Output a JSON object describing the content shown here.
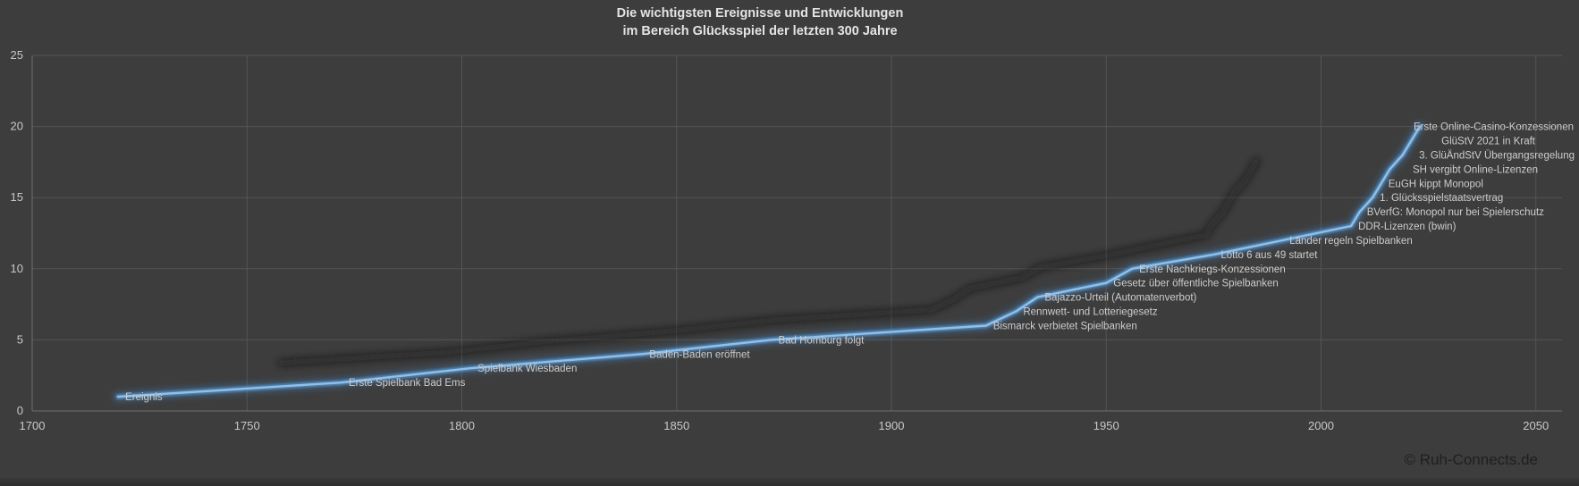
{
  "title": {
    "line1": "Die wichtigsten Ereignisse und Entwicklungen",
    "line2": "im Bereich Glücksspiel der letzten 300 Jahre"
  },
  "watermark": "© Ruh-Connects.de",
  "colors": {
    "background": "#3d3d3d",
    "gridline": "#555555",
    "axis": "#6e6e6e",
    "tick_text": "#c9c9c9",
    "title_text": "#e4e4e4",
    "label_text": "#cfcdcd",
    "line": "#5b9bd5",
    "line_core": "#8fc0ea",
    "line_glow": "#4285c4",
    "shadow": "#191919",
    "watermark_text": "#1f1f1f"
  },
  "chart_data": {
    "type": "line",
    "title": "Die wichtigsten Ereignisse und Entwicklungen im Bereich Glücksspiel der letzten 300 Jahre",
    "series_name": "Ereignis",
    "xlabel": "",
    "ylabel": "",
    "x_ticks": [
      1700,
      1750,
      1800,
      1850,
      1900,
      1950,
      2000,
      2050
    ],
    "y_ticks": [
      0,
      5,
      10,
      15,
      20,
      25
    ],
    "xlim": [
      1700,
      2056
    ],
    "ylim": [
      0,
      25
    ],
    "grid": true,
    "legend": "none",
    "effects": [
      "outer-glow",
      "perspective-shadow"
    ],
    "points": [
      {
        "label": "Ereignis",
        "year": 1720,
        "value": 1
      },
      {
        "label": "Erste Spielbank Bad Ems",
        "year": 1772,
        "value": 2
      },
      {
        "label": "Spielbank Wiesbaden",
        "year": 1802,
        "value": 3
      },
      {
        "label": "Baden-Baden eröffnet",
        "year": 1842,
        "value": 4
      },
      {
        "label": "Bad Homburg folgt",
        "year": 1872,
        "value": 5
      },
      {
        "label": "Bismarck verbietet Spielbanken",
        "year": 1922,
        "value": 6
      },
      {
        "label": "Rennwett- und Lotteriegesetz",
        "year": 1929,
        "value": 7
      },
      {
        "label": "Bajazzo-Urteil (Automatenverbot)",
        "year": 1934,
        "value": 8
      },
      {
        "label": "Gesetz über öffentliche Spielbanken",
        "year": 1950,
        "value": 9
      },
      {
        "label": "Erste Nachkriegs-Konzessionen",
        "year": 1956,
        "value": 10
      },
      {
        "label": "Lotto 6 aus 49 startet",
        "year": 1975,
        "value": 11
      },
      {
        "label": "Länder regeln Spielbanken",
        "year": 1991,
        "value": 12
      },
      {
        "label": "DDR-Lizenzen (bwin)",
        "year": 2007,
        "value": 13
      },
      {
        "label": "BVerfG: Monopol nur bei Spielerschutz",
        "year": 2009,
        "value": 14
      },
      {
        "label": "1. Glücksspielstaatsvertrag",
        "year": 2012,
        "value": 15
      },
      {
        "label": "EuGH kippt Monopol",
        "year": 2014,
        "value": 16
      },
      {
        "label": "SH vergibt Online-Lizenzen",
        "year": 2016,
        "value": 17
      },
      {
        "label": "3. GlüÄndStV Übergangsregelung",
        "year": 2019,
        "value": 18
      },
      {
        "label": "GlüStV 2021 in Kraft",
        "year": 2021,
        "value": 19
      },
      {
        "label": "Erste Online-Casino-Konzessionen",
        "year": 2023,
        "value": 20
      }
    ]
  }
}
